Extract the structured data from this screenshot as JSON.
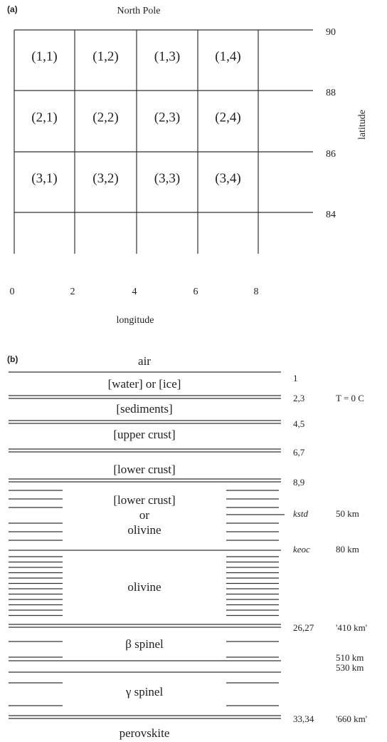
{
  "panel_a": {
    "label": "(a)",
    "title": "North Pole",
    "cells": [
      [
        "(1,1)",
        "(1,2)",
        "(1,3)",
        "(1,4)"
      ],
      [
        "(2,1)",
        "(2,2)",
        "(2,3)",
        "(2,4)"
      ],
      [
        "(3,1)",
        "(3,2)",
        "(3,3)",
        "(3,4)"
      ]
    ],
    "x_ticks": [
      "0",
      "2",
      "4",
      "6",
      "8"
    ],
    "y_ticks": [
      "90",
      "88",
      "86",
      "84"
    ],
    "x_label": "longitude",
    "y_label": "latitude"
  },
  "panel_b": {
    "label": "(b)",
    "layers": [
      "air",
      "[water] or [ice]",
      "[sediments]",
      "[upper crust]",
      "[lower crust]",
      "[lower crust]",
      "or",
      "olivine",
      "olivine",
      "β spinel",
      "γ spinel",
      "perovskite"
    ],
    "boundaries": [
      {
        "label": "1"
      },
      {
        "label": "2,3",
        "depth": "T = 0 C"
      },
      {
        "label": "4,5"
      },
      {
        "label": "6,7"
      },
      {
        "label": "8,9"
      },
      {
        "label": "kstd",
        "depth": "50 km"
      },
      {
        "label": "keoc",
        "depth": "80 km"
      },
      {
        "label": "26,27",
        "depth": "'410 km'"
      },
      {
        "depth": "510 km"
      },
      {
        "depth": "530 km"
      },
      {
        "label": "33,34",
        "depth": "'660 km'"
      }
    ]
  }
}
